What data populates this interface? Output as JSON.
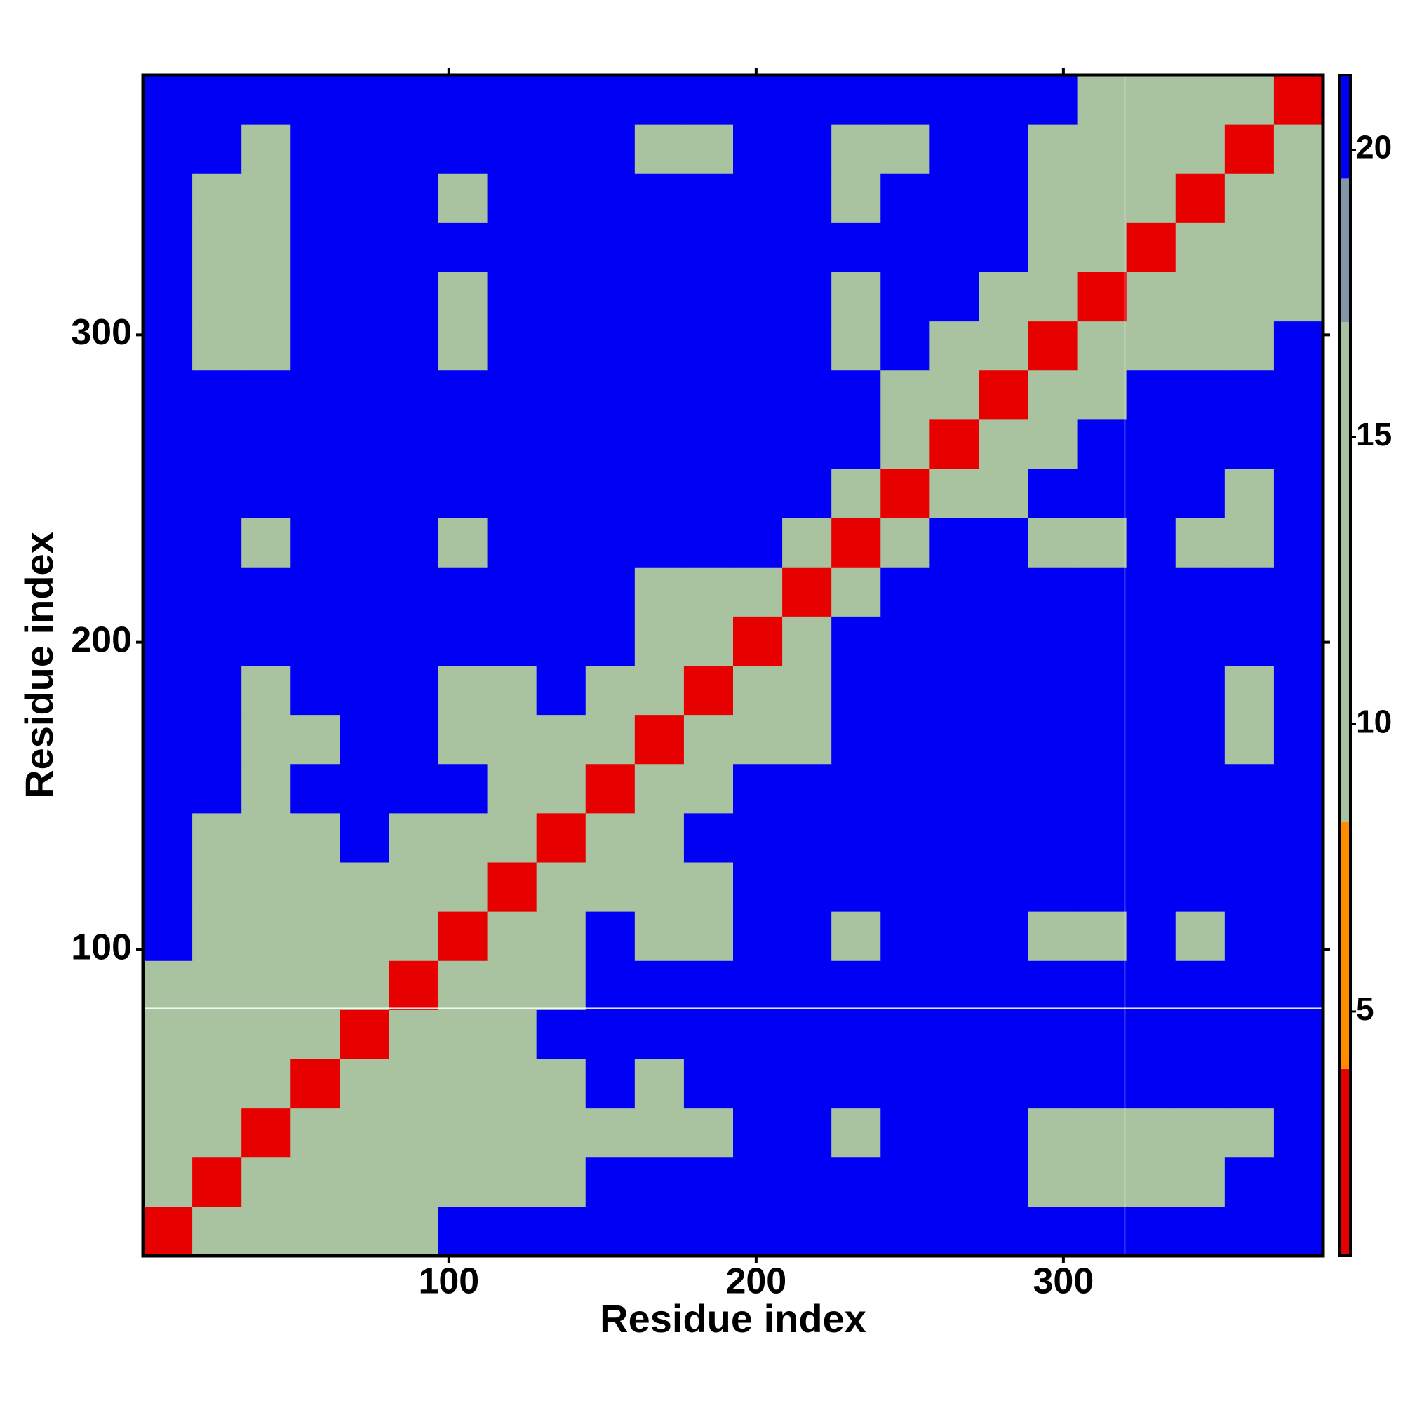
{
  "chart_data": {
    "type": "heatmap",
    "xlabel": "Residue index",
    "ylabel": "Residue index",
    "bin_edges": [
      0.5,
      16.5,
      32.5,
      48.5,
      64.5,
      80.5,
      96.5,
      112.5,
      128.5,
      144.5,
      160.5,
      176.5,
      192.5,
      208.5,
      224.5,
      240.5,
      256.5,
      272.5,
      288.5,
      304.5,
      320.5,
      336.5,
      352.5,
      368.5,
      384.5
    ],
    "xlim": [
      0.5,
      384.5
    ],
    "ylim": [
      0.5,
      384.5
    ],
    "xticks": [
      100,
      200,
      300
    ],
    "yticks": [
      100,
      200,
      300
    ],
    "clim": [
      0.75,
      21.3
    ],
    "cticks": [
      5,
      10,
      15,
      20
    ],
    "colorscale": [
      {
        "max": 4,
        "color": "#e60000"
      },
      {
        "max": 8.3,
        "color": "#ff8c00"
      },
      {
        "max": 17,
        "color": "#a9c2a0"
      },
      {
        "max": 19.5,
        "color": "#8296a8"
      },
      {
        "max": 21.3,
        "color": "#0000f5"
      }
    ],
    "crosshair": {
      "x": 320,
      "y": 81
    },
    "matrix": [
      [
        3,
        9,
        13,
        15,
        14,
        14,
        21,
        21,
        21,
        21,
        21,
        21,
        21,
        21,
        21,
        21,
        21,
        21,
        21,
        21,
        21,
        21,
        21,
        21
      ],
      [
        9,
        3,
        9,
        12,
        13,
        12,
        13,
        13,
        15,
        21,
        21,
        21,
        21,
        21,
        21,
        21,
        21,
        21,
        13,
        12,
        13,
        15,
        21,
        21
      ],
      [
        13,
        9,
        3,
        9,
        12,
        13,
        14,
        12,
        14,
        16,
        14,
        15,
        21,
        21,
        16,
        21,
        21,
        21,
        14,
        12,
        12,
        13,
        14,
        21
      ],
      [
        15,
        12,
        9,
        3,
        9,
        12,
        13,
        12,
        15,
        21,
        13,
        21,
        21,
        21,
        21,
        21,
        21,
        21,
        21,
        21,
        21,
        21,
        21,
        21
      ],
      [
        14,
        13,
        12,
        9,
        3,
        9,
        12,
        13,
        21,
        21,
        21,
        21,
        21,
        21,
        21,
        21,
        21,
        21,
        21,
        21,
        21,
        21,
        21,
        21
      ],
      [
        14,
        12,
        13,
        12,
        9,
        3,
        9,
        12,
        14,
        21,
        21,
        21,
        21,
        21,
        21,
        21,
        21,
        21,
        21,
        21,
        21,
        21,
        21,
        21
      ],
      [
        21,
        13,
        14,
        13,
        12,
        9,
        3,
        9,
        13,
        21,
        14,
        15,
        21,
        21,
        16,
        21,
        21,
        21,
        14,
        13,
        21,
        15,
        21,
        21
      ],
      [
        21,
        13,
        12,
        12,
        13,
        12,
        9,
        3,
        9,
        13,
        13,
        14,
        21,
        21,
        21,
        21,
        21,
        21,
        21,
        21,
        21,
        21,
        21,
        21
      ],
      [
        21,
        15,
        14,
        15,
        21,
        14,
        13,
        9,
        3,
        9,
        13,
        21,
        21,
        21,
        21,
        21,
        21,
        21,
        21,
        21,
        21,
        21,
        21,
        21
      ],
      [
        21,
        21,
        16,
        21,
        21,
        21,
        21,
        13,
        9,
        3,
        9,
        12,
        21,
        21,
        21,
        21,
        21,
        21,
        21,
        21,
        21,
        21,
        21,
        21
      ],
      [
        21,
        21,
        14,
        13,
        21,
        21,
        14,
        13,
        13,
        9,
        3,
        9,
        12,
        9,
        21,
        21,
        21,
        21,
        21,
        21,
        21,
        21,
        16,
        21
      ],
      [
        21,
        21,
        15,
        21,
        21,
        21,
        15,
        14,
        21,
        12,
        9,
        3,
        9,
        12,
        21,
        21,
        21,
        21,
        21,
        21,
        21,
        21,
        16,
        21
      ],
      [
        21,
        21,
        21,
        21,
        21,
        21,
        21,
        21,
        21,
        21,
        12,
        9,
        3,
        9,
        21,
        21,
        21,
        21,
        21,
        21,
        21,
        21,
        21,
        21
      ],
      [
        21,
        21,
        21,
        21,
        21,
        21,
        21,
        21,
        21,
        21,
        9,
        12,
        9,
        3,
        9,
        21,
        21,
        21,
        21,
        21,
        21,
        21,
        21,
        21
      ],
      [
        21,
        21,
        16,
        21,
        21,
        21,
        16,
        21,
        21,
        21,
        21,
        21,
        21,
        9,
        3,
        9,
        21,
        21,
        16,
        16,
        21,
        14,
        15,
        21
      ],
      [
        21,
        21,
        21,
        21,
        21,
        21,
        21,
        21,
        21,
        21,
        21,
        21,
        21,
        21,
        9,
        3,
        9,
        13,
        21,
        21,
        21,
        21,
        15,
        21
      ],
      [
        21,
        21,
        21,
        21,
        21,
        21,
        21,
        21,
        21,
        21,
        21,
        21,
        21,
        21,
        21,
        9,
        3,
        9,
        13,
        21,
        21,
        21,
        21,
        21
      ],
      [
        21,
        21,
        21,
        21,
        21,
        21,
        21,
        21,
        21,
        21,
        21,
        21,
        21,
        21,
        21,
        13,
        9,
        3,
        9,
        12,
        21,
        21,
        21,
        21
      ],
      [
        21,
        13,
        14,
        21,
        21,
        21,
        14,
        21,
        21,
        21,
        21,
        21,
        21,
        21,
        16,
        21,
        13,
        9,
        3,
        9,
        11,
        12,
        9,
        21
      ],
      [
        21,
        12,
        12,
        21,
        21,
        21,
        13,
        21,
        21,
        21,
        21,
        21,
        21,
        21,
        16,
        21,
        21,
        12,
        9,
        3,
        9,
        10,
        12,
        15
      ],
      [
        21,
        13,
        12,
        21,
        21,
        21,
        21,
        21,
        21,
        21,
        21,
        21,
        21,
        21,
        21,
        21,
        21,
        21,
        11,
        9,
        3,
        9,
        11,
        14
      ],
      [
        21,
        15,
        13,
        21,
        21,
        21,
        15,
        21,
        21,
        21,
        21,
        21,
        21,
        21,
        14,
        21,
        21,
        21,
        12,
        10,
        9,
        3,
        9,
        12
      ],
      [
        21,
        21,
        14,
        21,
        21,
        21,
        21,
        21,
        21,
        21,
        16,
        16,
        21,
        21,
        15,
        15,
        21,
        21,
        9,
        12,
        11,
        9,
        3,
        9
      ],
      [
        21,
        21,
        21,
        21,
        21,
        21,
        21,
        21,
        21,
        21,
        21,
        21,
        21,
        21,
        21,
        21,
        21,
        21,
        21,
        15,
        14,
        12,
        9,
        3
      ]
    ]
  }
}
